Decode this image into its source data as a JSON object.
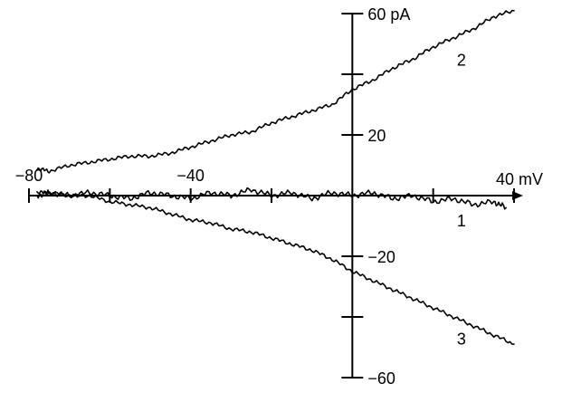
{
  "chart_data": {
    "type": "line",
    "title": "",
    "xlabel": "mV",
    "ylabel": "pA",
    "xlim": [
      -80,
      40
    ],
    "ylim": [
      -60,
      60
    ],
    "x_tick_labels": [
      {
        "value": -80,
        "text": "−80"
      },
      {
        "value": -40,
        "text": "−40"
      },
      {
        "value": 40,
        "text": "40 mV"
      }
    ],
    "y_tick_labels": [
      {
        "value": 60,
        "text": "60 pA"
      },
      {
        "value": 20,
        "text": "20"
      },
      {
        "value": -20,
        "text": "−20"
      },
      {
        "value": -60,
        "text": "−60"
      }
    ],
    "x_ticks": [
      -80,
      -60,
      -40,
      -20,
      20,
      40
    ],
    "y_ticks": [
      60,
      40,
      20,
      -20,
      -40,
      -60
    ],
    "series": [
      {
        "name": "1",
        "x": [
          -78,
          -75,
          -70,
          -65,
          -60,
          -55,
          -50,
          -45,
          -40,
          -35,
          -30,
          -25,
          -20,
          -15,
          -10,
          -5,
          0,
          5,
          10,
          15,
          20,
          25,
          30,
          35,
          38
        ],
        "y": [
          0,
          1,
          0,
          1,
          0,
          -1,
          1,
          0,
          -1,
          1,
          0,
          2,
          0,
          1,
          -1,
          1,
          0,
          1,
          -1,
          0,
          -2,
          -1,
          -3,
          -2,
          -4
        ]
      },
      {
        "name": "2",
        "x": [
          -78,
          -75,
          -70,
          -65,
          -60,
          -55,
          -50,
          -45,
          -40,
          -35,
          -30,
          -25,
          -20,
          -15,
          -10,
          -5,
          0,
          5,
          10,
          15,
          20,
          25,
          30,
          35,
          40
        ],
        "y": [
          9,
          8,
          10,
          11,
          12,
          13,
          13,
          14,
          16,
          18,
          20,
          21,
          24,
          26,
          28,
          30,
          35,
          38,
          42,
          45,
          49,
          52,
          55,
          59,
          61
        ]
      },
      {
        "name": "3",
        "x": [
          -78,
          -75,
          -70,
          -65,
          -60,
          -55,
          -50,
          -45,
          -40,
          -35,
          -30,
          -25,
          -20,
          -15,
          -10,
          -5,
          0,
          5,
          10,
          15,
          20,
          25,
          30,
          35,
          40
        ],
        "y": [
          1,
          1,
          0,
          0,
          -2,
          -3,
          -4,
          -6,
          -8,
          -9,
          -11,
          -12,
          -14,
          -16,
          -18,
          -21,
          -25,
          -28,
          -31,
          -34,
          -37,
          -40,
          -43,
          -46,
          -49
        ]
      }
    ],
    "series_labels": [
      {
        "series": "1",
        "text": "1",
        "x": 27,
        "y": -8
      },
      {
        "series": "2",
        "text": "2",
        "x": 27,
        "y": 45
      },
      {
        "series": "3",
        "text": "3",
        "x": 27,
        "y": -47
      }
    ],
    "grid": false,
    "legend": "none"
  }
}
